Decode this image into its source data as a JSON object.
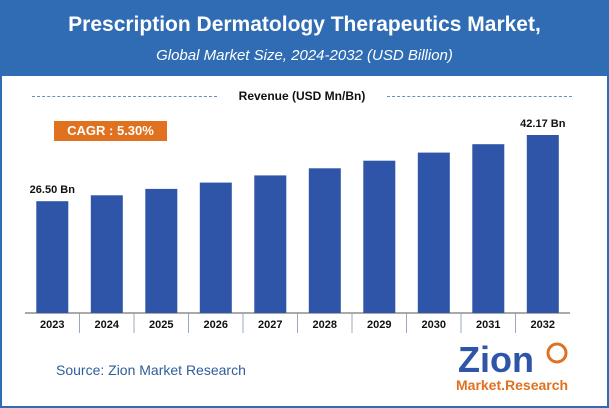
{
  "header": {
    "title": "Prescription Dermatology Therapeutics Market,",
    "subtitle": "Global Market Size, 2024-2032 (USD Billion)"
  },
  "legend": {
    "label": "Revenue (USD Mn/Bn)"
  },
  "cagr": {
    "label": "CAGR : 5.30%"
  },
  "source": {
    "text": "Source: Zion Market Research"
  },
  "logo": {
    "word": "Zion",
    "tagline": "Market.Research"
  },
  "colors": {
    "header": "#2f6cb3",
    "bar": "#2e55a7",
    "cagr": "#e0711f"
  },
  "chart_data": {
    "type": "bar",
    "categories": [
      "2023",
      "2024",
      "2025",
      "2026",
      "2027",
      "2028",
      "2029",
      "2030",
      "2031",
      "2032"
    ],
    "values": [
      26.5,
      27.9,
      29.4,
      30.9,
      32.6,
      34.3,
      36.1,
      38.0,
      40.0,
      42.17
    ],
    "data_labels": [
      {
        "index": 0,
        "text": "26.50 Bn"
      },
      {
        "index": 9,
        "text": "42.17 Bn"
      }
    ],
    "title": "Prescription Dermatology Therapeutics Market,",
    "subtitle": "Global Market Size, 2024-2032 (USD Billion)",
    "legend": "Revenue (USD Mn/Bn)",
    "ylim": [
      0,
      50
    ],
    "grid": false,
    "legend_placement": "top-center"
  }
}
